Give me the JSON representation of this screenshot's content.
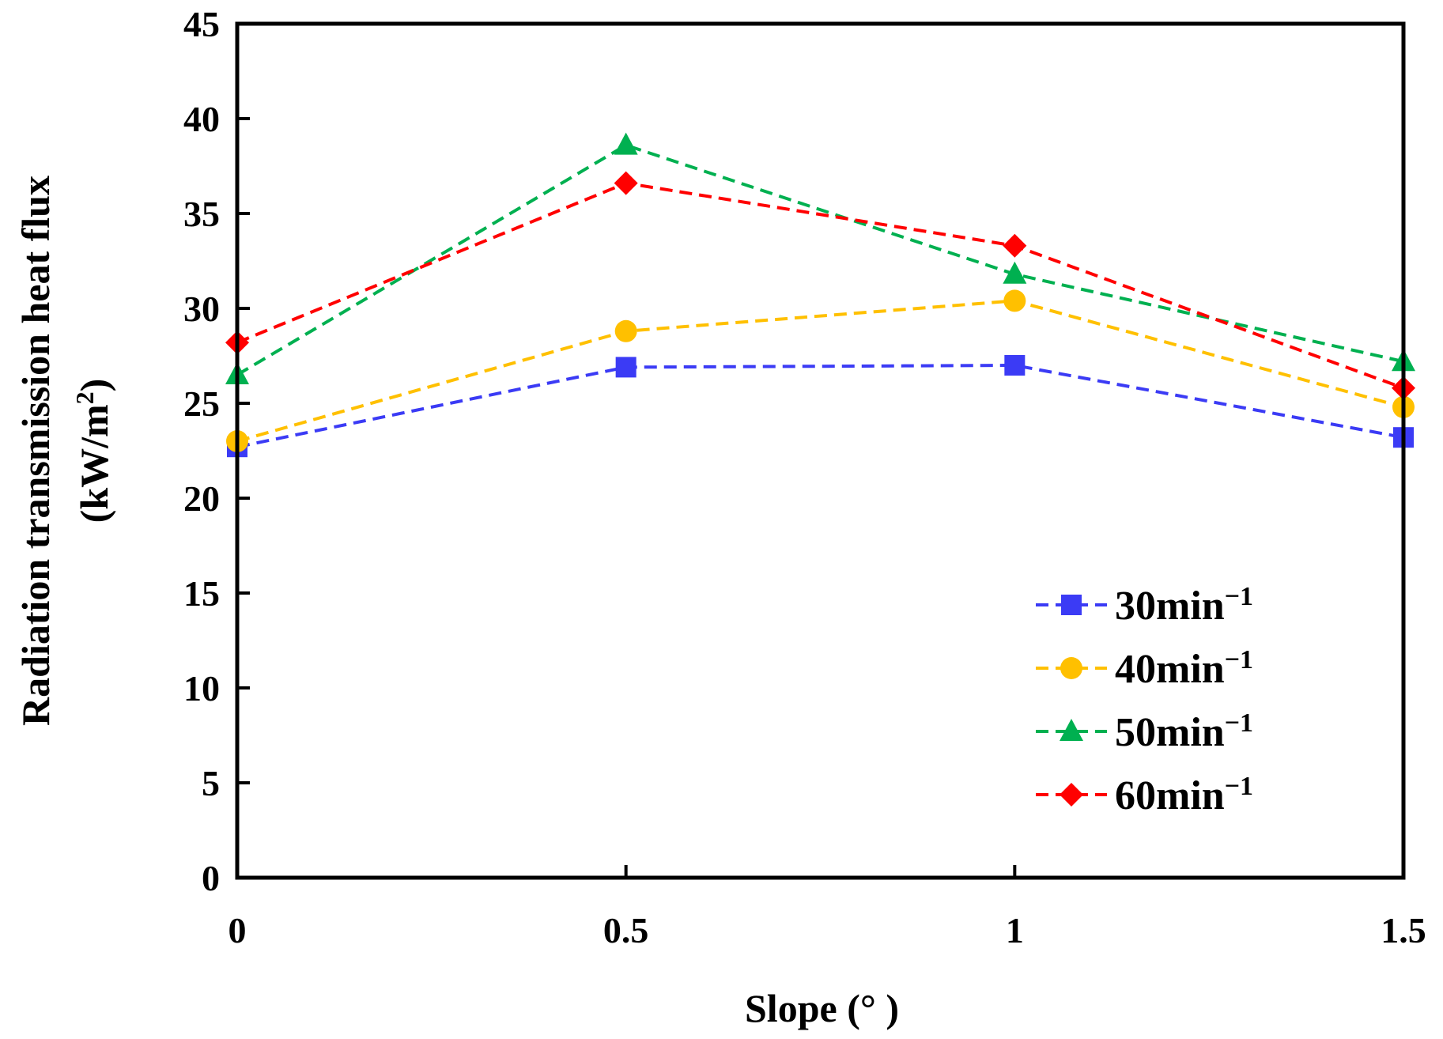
{
  "chart_data": {
    "type": "line",
    "title": "",
    "xlabel": "Slope (°  )",
    "ylabel_line1": "Radiation transmission heat flux",
    "ylabel_line2_prefix": "(kW/m",
    "ylabel_line2_sup": "2",
    "ylabel_line2_suffix": ")",
    "x": [
      0,
      0.5,
      1,
      1.5
    ],
    "x_tick_labels": [
      "0",
      "0.5",
      "1",
      "1.5"
    ],
    "y_ticks": [
      0,
      5,
      10,
      15,
      20,
      25,
      30,
      35,
      40,
      45
    ],
    "y_tick_labels": [
      "0",
      "5",
      "10",
      "15",
      "20",
      "25",
      "30",
      "35",
      "40",
      "45"
    ],
    "xlim": [
      0,
      1.5
    ],
    "ylim": [
      0,
      45
    ],
    "grid": false,
    "legend_position": "bottom-right",
    "series": [
      {
        "name": "30min",
        "name_sup": "−1",
        "color": "#3B3BF5",
        "marker": "square",
        "values": [
          22.7,
          26.9,
          27.0,
          23.2
        ]
      },
      {
        "name": "40min",
        "name_sup": "−1",
        "color": "#FFC000",
        "marker": "circle",
        "values": [
          23.0,
          28.8,
          30.4,
          24.8
        ]
      },
      {
        "name": "50min",
        "name_sup": "−1",
        "color": "#00B050",
        "marker": "triangle",
        "values": [
          26.5,
          38.6,
          31.8,
          27.2
        ]
      },
      {
        "name": "60min",
        "name_sup": "−1",
        "color": "#FF0000",
        "marker": "diamond",
        "values": [
          28.2,
          36.6,
          33.3,
          25.8
        ]
      }
    ]
  }
}
